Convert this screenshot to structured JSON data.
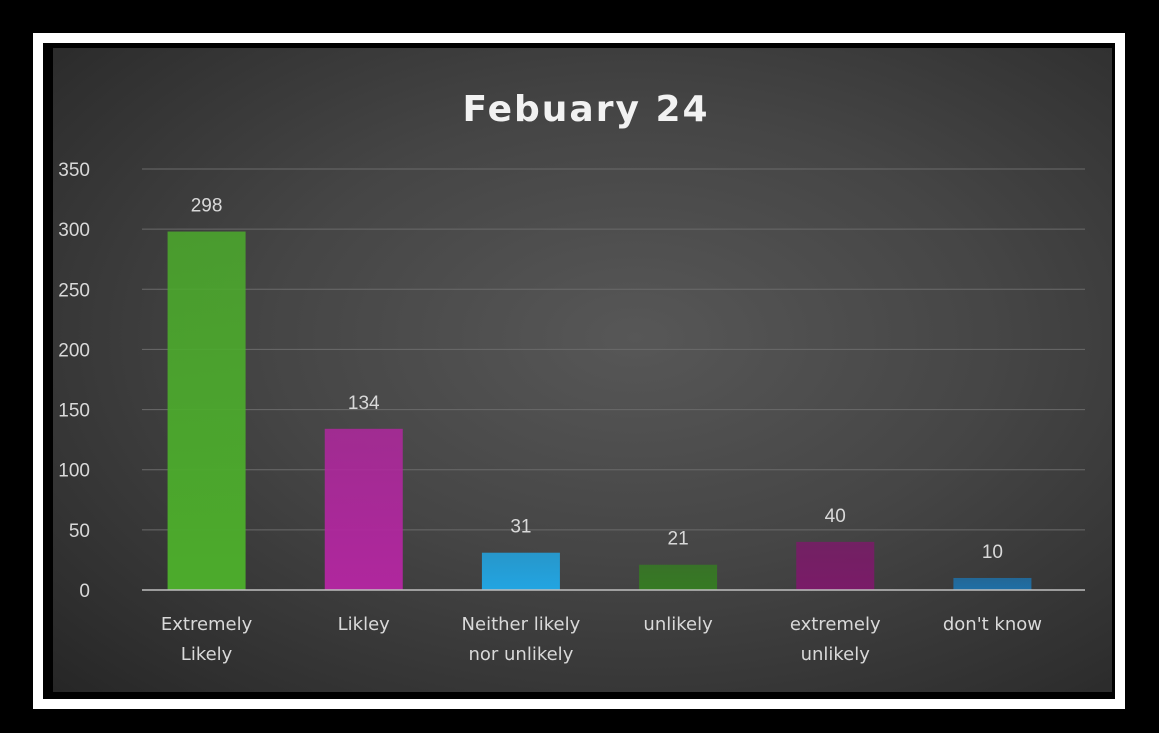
{
  "chart_data": {
    "type": "bar",
    "title": "Febuary 24",
    "categories": [
      [
        "Extremely",
        "Likely"
      ],
      [
        "Likley"
      ],
      [
        "Neither likely",
        "nor unlikely"
      ],
      [
        "unlikely"
      ],
      [
        "extremely",
        "unlikely"
      ],
      [
        "don't know"
      ]
    ],
    "values": [
      298,
      134,
      31,
      21,
      40,
      10
    ],
    "colors": [
      "#4cab2c",
      "#b0279e",
      "#22a5e2",
      "#367a23",
      "#7a1b68",
      "#1f6fa6"
    ],
    "ylim": [
      0,
      350
    ],
    "yticks": [
      "0",
      "50",
      "100",
      "150",
      "200",
      "250",
      "300",
      "350"
    ],
    "ytick_values": [
      0,
      50,
      100,
      150,
      200,
      250,
      300,
      350
    ],
    "grid": true,
    "legend": "none",
    "xlabel": "",
    "ylabel": ""
  }
}
